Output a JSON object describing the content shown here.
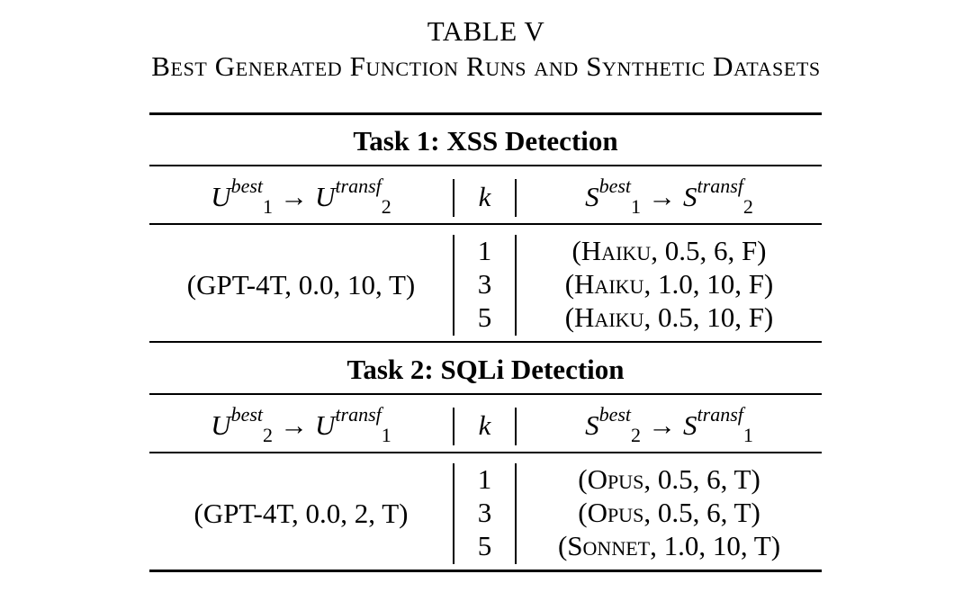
{
  "caption": {
    "number": "TABLE V",
    "title": "Best Generated Function Runs and Synthetic Datasets"
  },
  "sections": [
    {
      "title": "Task 1: XSS Detection",
      "header": {
        "u_from": {
          "base": "U",
          "sup": "best",
          "sub": "1"
        },
        "u_to": {
          "base": "U",
          "sup": "transf",
          "sub": "2"
        },
        "arrow": "→",
        "k": "k",
        "s_from": {
          "base": "S",
          "sup": "best",
          "sub": "1"
        },
        "s_to": {
          "base": "S",
          "sup": "transf",
          "sub": "2"
        }
      },
      "best_function": "(GPT-4T, 0.0, 10, T)",
      "rows": [
        {
          "k": "1",
          "model": "Haiku",
          "rest": ", 0.5, 6, F)"
        },
        {
          "k": "3",
          "model": "Haiku",
          "rest": ", 1.0, 10, F)"
        },
        {
          "k": "5",
          "model": "Haiku",
          "rest": ", 0.5, 10, F)"
        }
      ]
    },
    {
      "title": "Task 2: SQLi Detection",
      "header": {
        "u_from": {
          "base": "U",
          "sup": "best",
          "sub": "2"
        },
        "u_to": {
          "base": "U",
          "sup": "transf",
          "sub": "1"
        },
        "arrow": "→",
        "k": "k",
        "s_from": {
          "base": "S",
          "sup": "best",
          "sub": "2"
        },
        "s_to": {
          "base": "S",
          "sup": "transf",
          "sub": "1"
        }
      },
      "best_function": "(GPT-4T, 0.0, 2, T)",
      "rows": [
        {
          "k": "1",
          "model": "Opus",
          "rest": ", 0.5, 6, T)"
        },
        {
          "k": "3",
          "model": "Opus",
          "rest": ", 0.5, 6, T)"
        },
        {
          "k": "5",
          "model": "Sonnet",
          "rest": ", 1.0, 10, T)"
        }
      ]
    }
  ]
}
